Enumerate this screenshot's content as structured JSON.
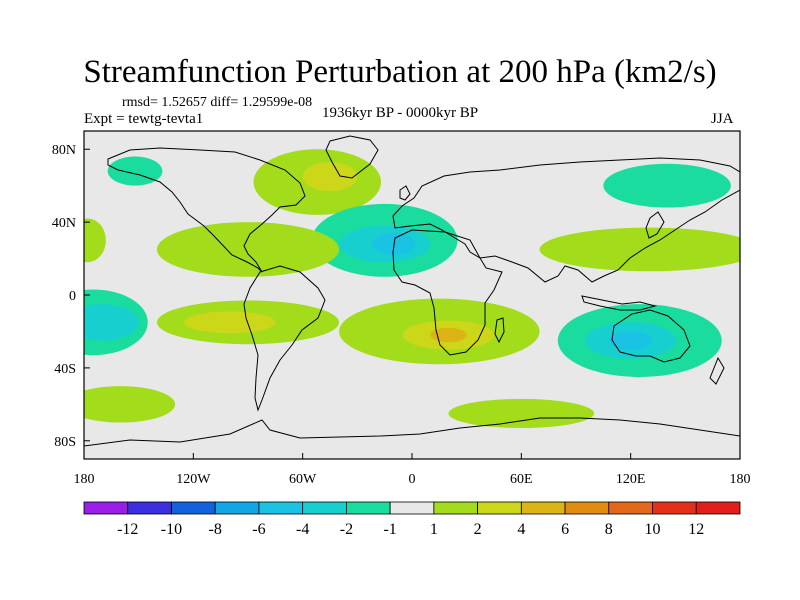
{
  "chart_data": {
    "type": "heatmap",
    "title": "Streamfunction Perturbation at 200 hPa (km2/s)",
    "stats_text": "rmsd= 1.52657  diff= 1.29599e-08",
    "experiment_text": "Expt = tewtg-tevta1",
    "period_text": "1936kyr BP - 0000kyr BP",
    "season": "JJA",
    "x_ticks": [
      {
        "value": -180,
        "label": "180"
      },
      {
        "value": -120,
        "label": "120W"
      },
      {
        "value": -60,
        "label": "60W"
      },
      {
        "value": 0,
        "label": "0"
      },
      {
        "value": 60,
        "label": "60E"
      },
      {
        "value": 120,
        "label": "120E"
      },
      {
        "value": 180,
        "label": "180"
      }
    ],
    "y_ticks": [
      {
        "value": 80,
        "label": "80N"
      },
      {
        "value": 40,
        "label": "40N"
      },
      {
        "value": 0,
        "label": "0"
      },
      {
        "value": -40,
        "label": "40S"
      },
      {
        "value": -80,
        "label": "80S"
      }
    ],
    "xlim": [
      -180,
      180
    ],
    "ylim": [
      -90,
      90
    ],
    "colorbar": {
      "boundaries": [
        "-12",
        "-10",
        "-8",
        "-6",
        "-4",
        "-2",
        "-1",
        "1",
        "2",
        "4",
        "6",
        "8",
        "10",
        "12"
      ],
      "colors": [
        "#9a1de8",
        "#3a2ee0",
        "#1063dd",
        "#12a6e6",
        "#1ac3e3",
        "#17cfcf",
        "#1adc9e",
        "#e8e8e8",
        "#a2dc1b",
        "#ccd71a",
        "#dcb514",
        "#e08c10",
        "#e2681a",
        "#e2301a",
        "#e31f1b"
      ]
    },
    "anomaly_regions": [
      {
        "name": "north-atlantic-positive",
        "lon": -52,
        "lat": 62,
        "rlon": 35,
        "rlat": 18,
        "level": 2
      },
      {
        "name": "north-atlantic-core",
        "lon": -45,
        "lat": 65,
        "rlon": 15,
        "rlat": 8,
        "level": 4
      },
      {
        "name": "north-pacific-negative",
        "lon": -152,
        "lat": 68,
        "rlon": 15,
        "rlat": 8,
        "level": -1
      },
      {
        "name": "central-atlantic-negative",
        "lon": -15,
        "lat": 30,
        "rlon": 40,
        "rlat": 20,
        "level": -1
      },
      {
        "name": "central-atlantic-core",
        "lon": -15,
        "lat": 28,
        "rlon": 25,
        "rlat": 10,
        "level": -2
      },
      {
        "name": "central-atlantic-center",
        "lon": -10,
        "lat": 28,
        "rlon": 12,
        "rlat": 6,
        "level": -4
      },
      {
        "name": "caribbean-positive",
        "lon": -90,
        "lat": 25,
        "rlon": 50,
        "rlat": 15,
        "level": 2
      },
      {
        "name": "far-west-positive",
        "lon": -178,
        "lat": 30,
        "rlon": 10,
        "rlat": 12,
        "level": 2
      },
      {
        "name": "east-pacific-negative",
        "lon": -175,
        "lat": -15,
        "rlon": 30,
        "rlat": 18,
        "level": -1
      },
      {
        "name": "east-pacific-core",
        "lon": -170,
        "lat": -15,
        "rlon": 20,
        "rlat": 10,
        "level": -2
      },
      {
        "name": "south-america-positive",
        "lon": -90,
        "lat": -15,
        "rlon": 50,
        "rlat": 12,
        "level": 2
      },
      {
        "name": "south-america-core",
        "lon": -100,
        "lat": -15,
        "rlon": 25,
        "rlat": 6,
        "level": 4
      },
      {
        "name": "southern-africa-positive",
        "lon": 15,
        "lat": -20,
        "rlon": 55,
        "rlat": 18,
        "level": 2
      },
      {
        "name": "southern-africa-core",
        "lon": 20,
        "lat": -22,
        "rlon": 25,
        "rlat": 8,
        "level": 4
      },
      {
        "name": "southern-africa-center",
        "lon": 20,
        "lat": -22,
        "rlon": 10,
        "rlat": 4,
        "level": 6
      },
      {
        "name": "australia-negative",
        "lon": 125,
        "lat": -25,
        "rlon": 45,
        "rlat": 20,
        "level": -1
      },
      {
        "name": "australia-core",
        "lon": 120,
        "lat": -25,
        "rlon": 25,
        "rlat": 10,
        "level": -2
      },
      {
        "name": "australia-center",
        "lon": 120,
        "lat": -25,
        "rlon": 12,
        "rlat": 5,
        "level": -4
      },
      {
        "name": "west-pacific-positive",
        "lon": 130,
        "lat": 25,
        "rlon": 60,
        "rlat": 12,
        "level": 2
      },
      {
        "name": "siberia-negative",
        "lon": 140,
        "lat": 60,
        "rlon": 35,
        "rlat": 12,
        "level": -1
      },
      {
        "name": "southern-ocean-positive",
        "lon": -160,
        "lat": -60,
        "rlon": 30,
        "rlat": 10,
        "level": 2
      },
      {
        "name": "antarctic-positive",
        "lon": 60,
        "lat": -65,
        "rlon": 40,
        "rlat": 8,
        "level": 2
      }
    ]
  }
}
